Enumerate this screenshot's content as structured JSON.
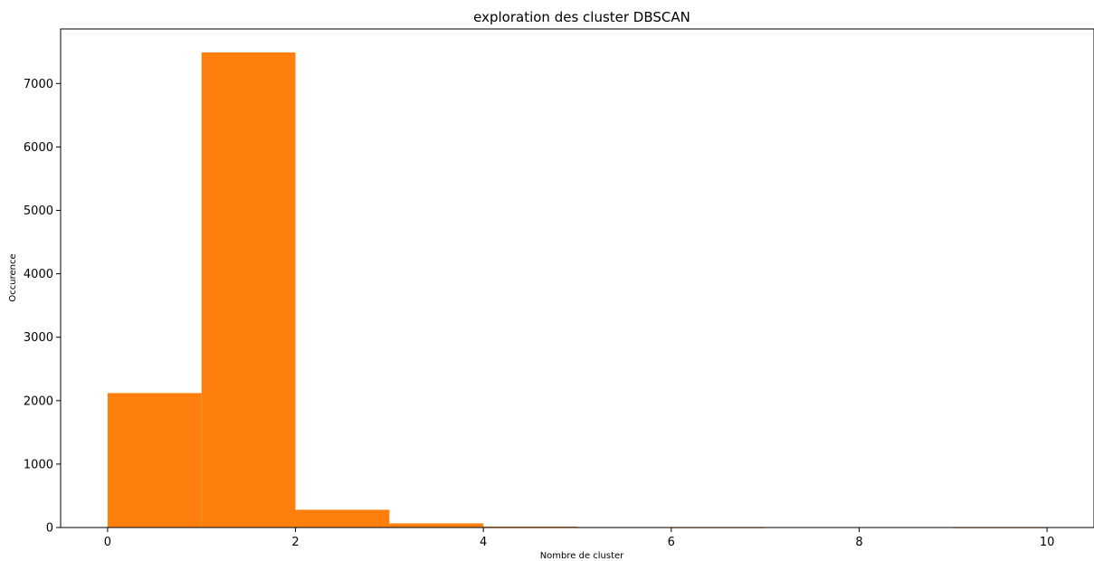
{
  "chart_data": {
    "type": "bar",
    "title": "exploration des cluster DBSCAN",
    "xlabel": "Nombre de cluster",
    "ylabel": "Occurence",
    "bins": [
      {
        "x0": 0,
        "x1": 1,
        "count": 2120
      },
      {
        "x0": 1,
        "x1": 2,
        "count": 7490
      },
      {
        "x0": 2,
        "x1": 3,
        "count": 280
      },
      {
        "x0": 3,
        "x1": 4,
        "count": 65
      },
      {
        "x0": 4,
        "x1": 5,
        "count": 15
      },
      {
        "x0": 5,
        "x1": 6,
        "count": 3
      },
      {
        "x0": 6,
        "x1": 7,
        "count": 1
      },
      {
        "x0": 7,
        "x1": 8,
        "count": 0
      },
      {
        "x0": 8,
        "x1": 9,
        "count": 0
      },
      {
        "x0": 9,
        "x1": 10,
        "count": 1
      }
    ],
    "xlim": [
      -0.5,
      10.5
    ],
    "ylim": [
      0,
      7860
    ],
    "xticks": [
      0,
      2,
      4,
      6,
      8,
      10
    ],
    "yticks": [
      0,
      1000,
      2000,
      3000,
      4000,
      5000,
      6000,
      7000
    ],
    "bar_color": "#ff7f0e",
    "grid": false,
    "legend": "none"
  }
}
